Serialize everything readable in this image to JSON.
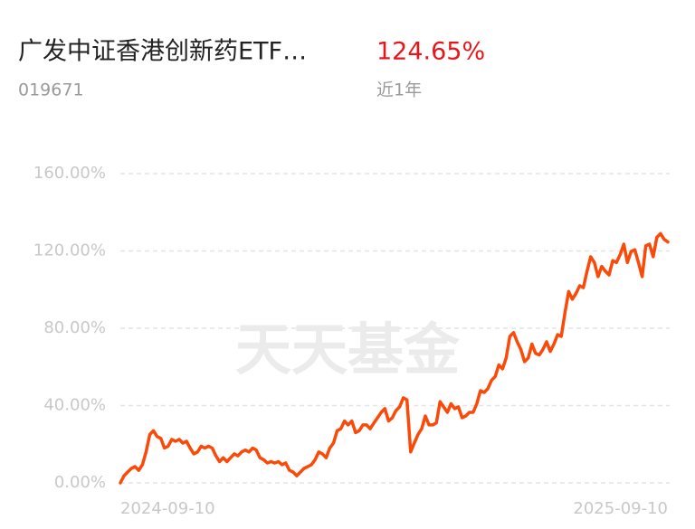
{
  "header": {
    "title": "广发中证香港创新药ETF…",
    "code": "019671",
    "return": "124.65%",
    "period": "近1年"
  },
  "chart_data": {
    "type": "line",
    "watermark": "天天基金",
    "color": "#fa4a0a",
    "grid": true,
    "ylim": [
      0,
      160
    ],
    "yticks": [
      {
        "value": 0,
        "label": "0.00%"
      },
      {
        "value": 40,
        "label": "40.00%"
      },
      {
        "value": 80,
        "label": "80.00%"
      },
      {
        "value": 120,
        "label": "120.00%"
      },
      {
        "value": 160,
        "label": "160.00%"
      }
    ],
    "categories": [
      "2024-09-10",
      null,
      null,
      null,
      null,
      null,
      null,
      null,
      null,
      null,
      null,
      null,
      null,
      null,
      null,
      null,
      null,
      null,
      null,
      null,
      null,
      null,
      null,
      null,
      null,
      null,
      null,
      null,
      null,
      null,
      null,
      null,
      null,
      null,
      null,
      null,
      null,
      null,
      null,
      null,
      null,
      null,
      null,
      null,
      null,
      null,
      null,
      null,
      null,
      null,
      null,
      null,
      null,
      null,
      null,
      null,
      null,
      null,
      null,
      null,
      null,
      null,
      null,
      null,
      null,
      null,
      null,
      null,
      null,
      null,
      null,
      null,
      null,
      null,
      null,
      null,
      null,
      null,
      null,
      null,
      null,
      null,
      null,
      null,
      null,
      null,
      null,
      null,
      null,
      null,
      null,
      null,
      null,
      null,
      null,
      null,
      null,
      null,
      null,
      null,
      null,
      null,
      null,
      null,
      null,
      null,
      null,
      null,
      null,
      null,
      null,
      null,
      null,
      null,
      null,
      null,
      null,
      null,
      null,
      null,
      null,
      null,
      null,
      null,
      null,
      null,
      null,
      null,
      null,
      null,
      null,
      null,
      null,
      null,
      null,
      null,
      null,
      null,
      null,
      null,
      null,
      null,
      null,
      null,
      null,
      null,
      null,
      null,
      null,
      "2025-09-10"
    ],
    "values": [
      0,
      3.7,
      5.6,
      7.5,
      8.4,
      6.5,
      9.4,
      16,
      25,
      27,
      24,
      23,
      18,
      19,
      22.5,
      21.5,
      22.5,
      20.6,
      21.5,
      18,
      15,
      16,
      19,
      18,
      19,
      18,
      14,
      11,
      13,
      11,
      13,
      15,
      14,
      16,
      17,
      16,
      18,
      17,
      13,
      12,
      10.3,
      11,
      10.3,
      11,
      9.4,
      10.3,
      6.5,
      5.6,
      3.7,
      5.6,
      7.5,
      8.4,
      9.4,
      12,
      16,
      15,
      13,
      18,
      20.6,
      27,
      28,
      32,
      30,
      32,
      26,
      27,
      30,
      30,
      28,
      31,
      33.7,
      36.5,
      38.4,
      32,
      33.7,
      37.4,
      39.3,
      44,
      43,
      16,
      20.6,
      25,
      28,
      34.6,
      30,
      30,
      31,
      42,
      39.3,
      36.5,
      41,
      38.4,
      39.3,
      33.7,
      34.6,
      36.5,
      36.5,
      41,
      47.7,
      46.8,
      48.7,
      53,
      55,
      61,
      59,
      64.6,
      75.8,
      77.7,
      73,
      69,
      62.7,
      64.6,
      71.8,
      67,
      66.2,
      69,
      73,
      68,
      71.8,
      76.7,
      75.8,
      88,
      99,
      95,
      98,
      102,
      101,
      109.5,
      117,
      114,
      106.7,
      112,
      109.5,
      107.6,
      115,
      114,
      118,
      123.5,
      114,
      119.7,
      120.6,
      114,
      106.7,
      122.6,
      123.5,
      117,
      127,
      129,
      126,
      124.65
    ]
  }
}
